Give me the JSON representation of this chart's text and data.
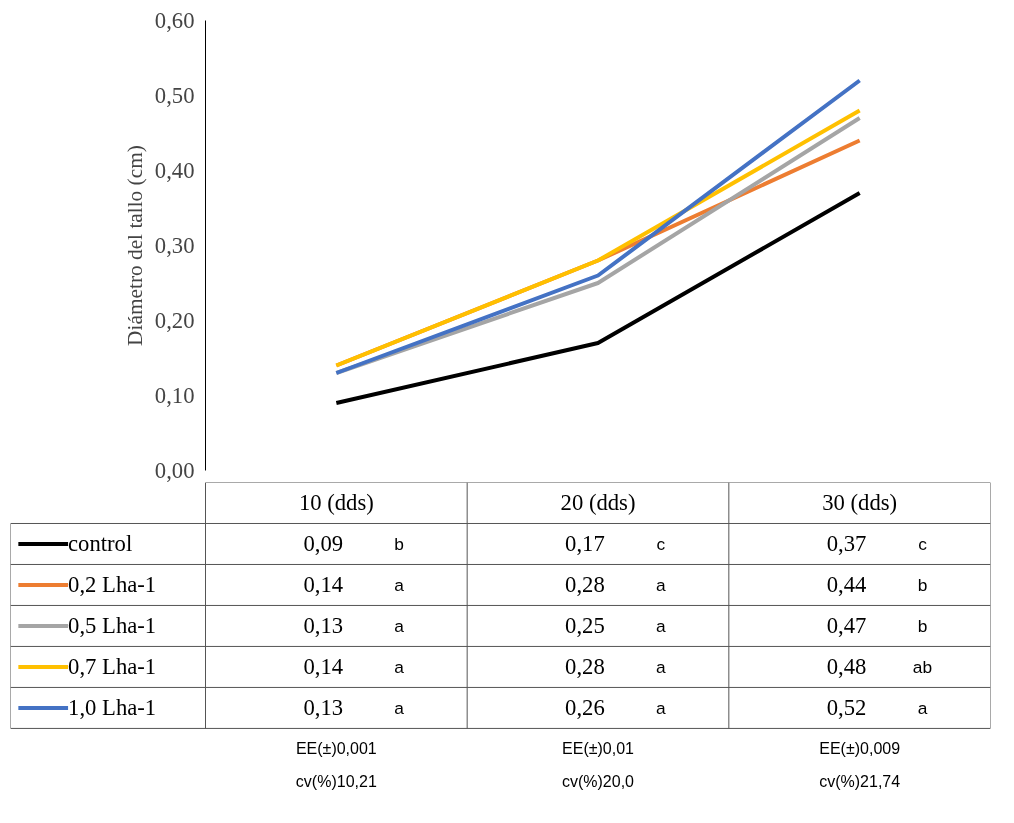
{
  "chart_data": {
    "type": "line",
    "ylabel": "Diámetro del tallo (cm)",
    "categories": [
      "10 (dds)",
      "20 (dds)",
      "30 (dds)"
    ],
    "ylim": [
      0,
      0.6
    ],
    "yticks": [
      {
        "value": 0,
        "label": "0,00"
      },
      {
        "value": 0.1,
        "label": "0,10"
      },
      {
        "value": 0.2,
        "label": "0,20"
      },
      {
        "value": 0.3,
        "label": "0,30"
      },
      {
        "value": 0.4,
        "label": "0,40"
      },
      {
        "value": 0.5,
        "label": "0,50"
      },
      {
        "value": 0.6,
        "label": "0,60"
      }
    ],
    "grid": false,
    "marker": "none",
    "line_style": "solid",
    "legend": "bottom left",
    "series": [
      {
        "name": "control",
        "color": "#000000",
        "values": [
          0.09,
          0.17,
          0.37
        ],
        "value_labels": [
          "0,09",
          "0,17",
          "0,37"
        ]
      },
      {
        "name": "0,2 Lha-1",
        "color": "#ed7d31",
        "values": [
          0.14,
          0.28,
          0.44
        ],
        "value_labels": [
          "0,14",
          "0,28",
          "0,44"
        ]
      },
      {
        "name": "0,5 Lha-1",
        "color": "#a5a5a5",
        "values": [
          0.13,
          0.25,
          0.47
        ],
        "value_labels": [
          "0,13",
          "0,25",
          "0,47"
        ]
      },
      {
        "name": "0,7 Lha-1",
        "color": "#ffc000",
        "values": [
          0.14,
          0.28,
          0.48
        ],
        "value_labels": [
          "0,14",
          "0,28",
          "0,48"
        ]
      },
      {
        "name": "1,0 Lha-1",
        "color": "#4472c4",
        "values": [
          0.13,
          0.26,
          0.52
        ],
        "value_labels": [
          "0,13",
          "0,26",
          "0,52"
        ]
      }
    ],
    "annotations": [
      "b",
      "c",
      "c",
      "a",
      "a",
      "b",
      "a",
      "a",
      "b",
      "a",
      "a",
      "ab",
      "a",
      "a",
      "a",
      "EE(±)0,001",
      "cv(%)10,21",
      "EE(±)0,01",
      "cv(%)20,0",
      "EE(±)0,009",
      "cv(%)21,74"
    ]
  }
}
